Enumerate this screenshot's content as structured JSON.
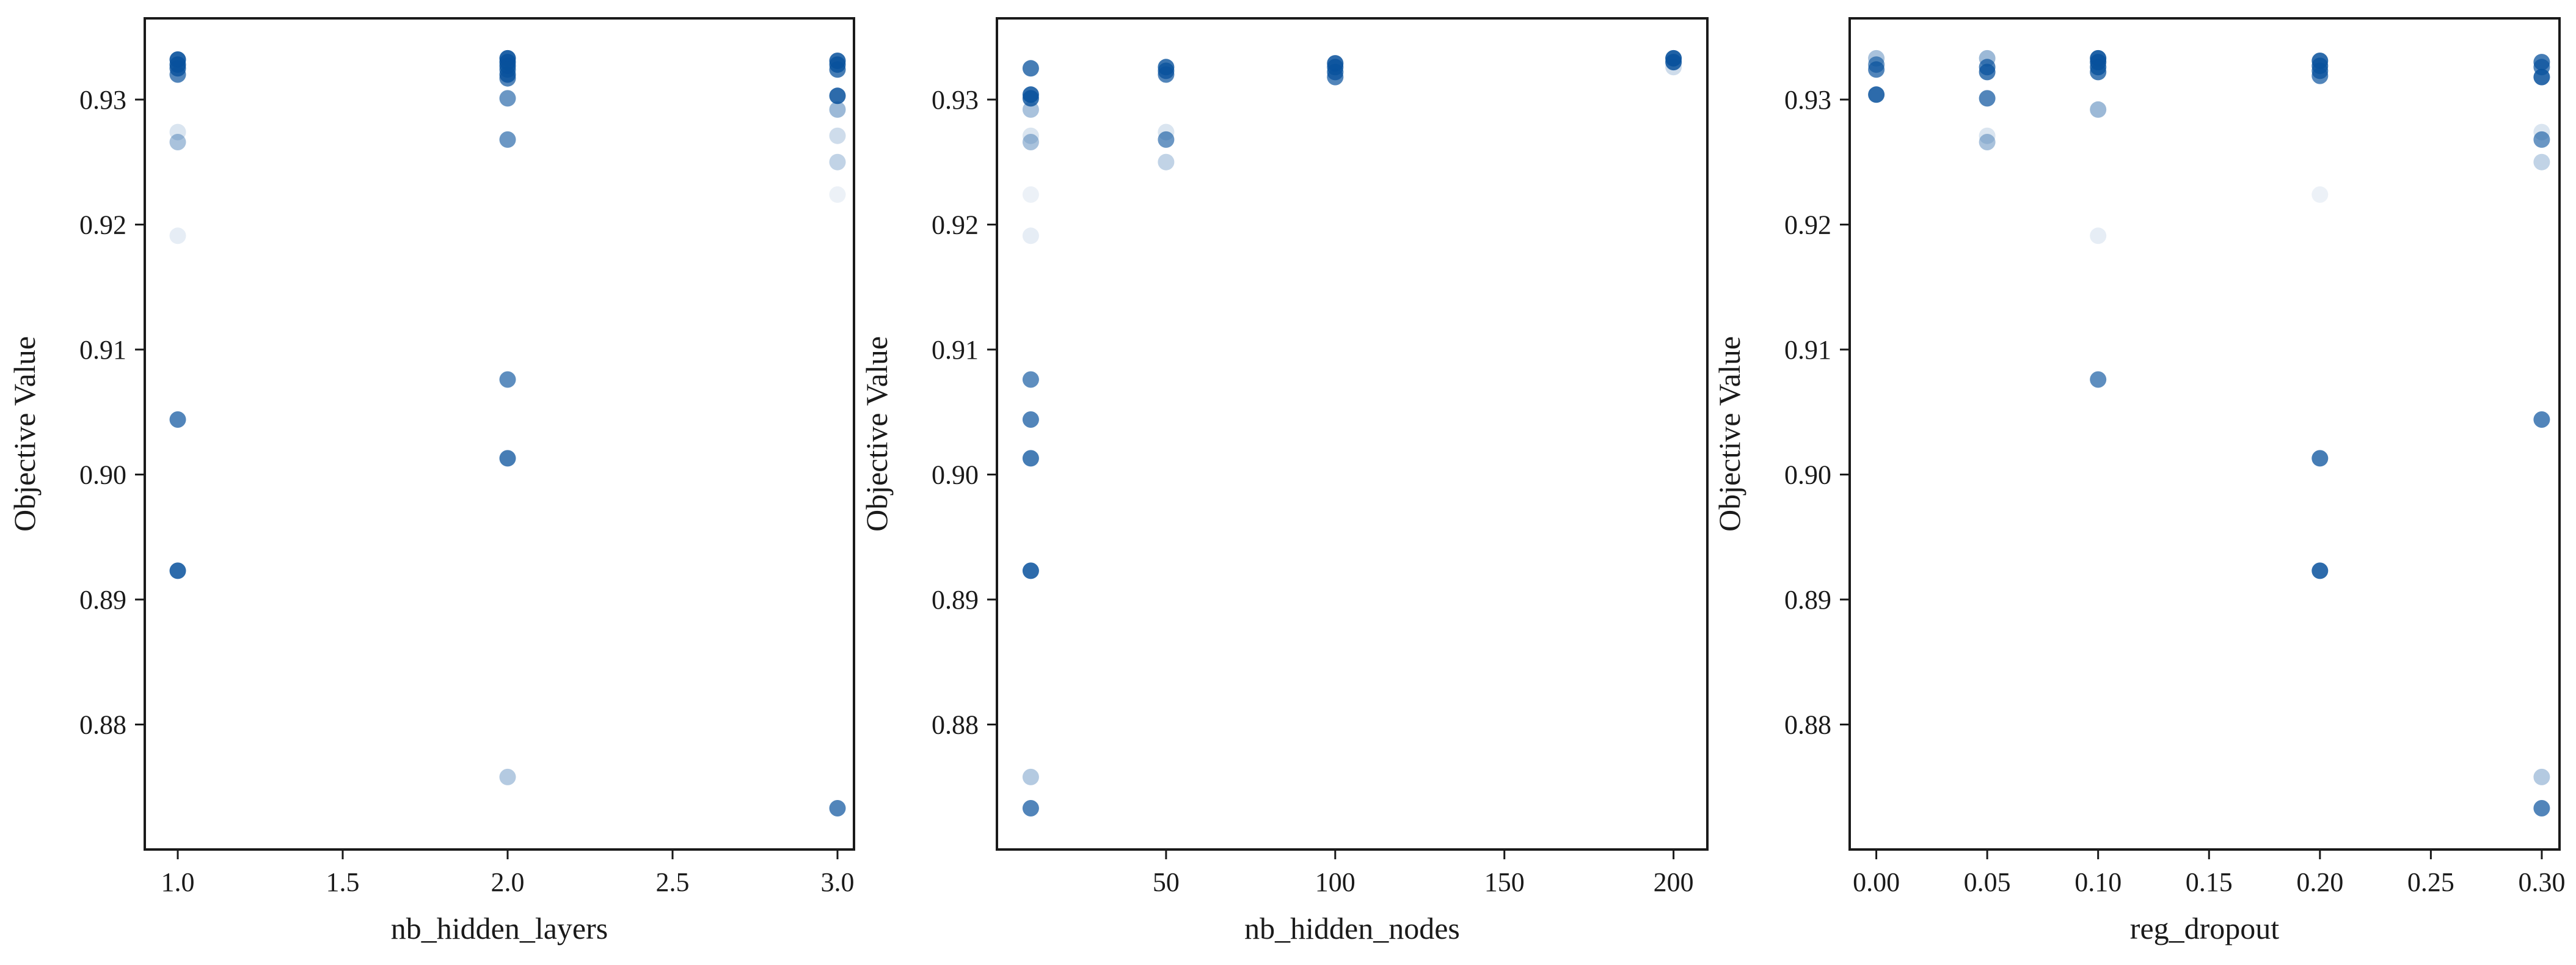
{
  "chart_data": [
    {
      "type": "scatter",
      "xlabel": "nb_hidden_layers",
      "ylabel": "Objective Value",
      "xlim": [
        0.9,
        3.05
      ],
      "ylim": [
        0.87,
        0.9365
      ],
      "xticks": [
        1.0,
        1.5,
        2.0,
        2.5,
        3.0
      ],
      "xtick_labels": [
        "1.0",
        "1.5",
        "2.0",
        "2.5",
        "3.0"
      ],
      "yticks": [
        0.88,
        0.89,
        0.9,
        0.91,
        0.92,
        0.93
      ],
      "ytick_labels": [
        "0.88",
        "0.89",
        "0.90",
        "0.91",
        "0.92",
        "0.93"
      ],
      "grid": false,
      "color": "#08519c",
      "points": [
        {
          "x": 1.0,
          "y": 0.9332,
          "a": 0.9
        },
        {
          "x": 1.0,
          "y": 0.9328,
          "a": 0.85
        },
        {
          "x": 1.0,
          "y": 0.9325,
          "a": 0.8
        },
        {
          "x": 1.0,
          "y": 0.932,
          "a": 0.7
        },
        {
          "x": 1.0,
          "y": 0.9274,
          "a": 0.15
        },
        {
          "x": 1.0,
          "y": 0.9266,
          "a": 0.35
        },
        {
          "x": 1.0,
          "y": 0.9191,
          "a": 0.1
        },
        {
          "x": 1.0,
          "y": 0.9044,
          "a": 0.7
        },
        {
          "x": 1.0,
          "y": 0.8923,
          "a": 0.85
        },
        {
          "x": 2.0,
          "y": 0.9333,
          "a": 0.9
        },
        {
          "x": 2.0,
          "y": 0.933,
          "a": 0.85
        },
        {
          "x": 2.0,
          "y": 0.9327,
          "a": 0.8
        },
        {
          "x": 2.0,
          "y": 0.9324,
          "a": 0.75
        },
        {
          "x": 2.0,
          "y": 0.932,
          "a": 0.8
        },
        {
          "x": 2.0,
          "y": 0.9317,
          "a": 0.7
        },
        {
          "x": 2.0,
          "y": 0.9301,
          "a": 0.6
        },
        {
          "x": 2.0,
          "y": 0.9268,
          "a": 0.6
        },
        {
          "x": 2.0,
          "y": 0.9076,
          "a": 0.65
        },
        {
          "x": 2.0,
          "y": 0.9013,
          "a": 0.75
        },
        {
          "x": 2.0,
          "y": 0.8758,
          "a": 0.3
        },
        {
          "x": 3.0,
          "y": 0.9331,
          "a": 0.85
        },
        {
          "x": 3.0,
          "y": 0.9328,
          "a": 0.8
        },
        {
          "x": 3.0,
          "y": 0.9324,
          "a": 0.75
        },
        {
          "x": 3.0,
          "y": 0.9303,
          "a": 0.85
        },
        {
          "x": 3.0,
          "y": 0.9292,
          "a": 0.4
        },
        {
          "x": 3.0,
          "y": 0.9271,
          "a": 0.2
        },
        {
          "x": 3.0,
          "y": 0.925,
          "a": 0.25
        },
        {
          "x": 3.0,
          "y": 0.9224,
          "a": 0.08
        },
        {
          "x": 3.0,
          "y": 0.8733,
          "a": 0.7
        }
      ]
    },
    {
      "type": "scatter",
      "xlabel": "nb_hidden_nodes",
      "ylabel": "Objective Value",
      "xlim": [
        0,
        210
      ],
      "ylim": [
        0.87,
        0.9365
      ],
      "xticks": [
        50,
        100,
        150,
        200
      ],
      "xtick_labels": [
        "50",
        "100",
        "150",
        "200"
      ],
      "yticks": [
        0.88,
        0.89,
        0.9,
        0.91,
        0.92,
        0.93
      ],
      "ytick_labels": [
        "0.88",
        "0.89",
        "0.90",
        "0.91",
        "0.92",
        "0.93"
      ],
      "grid": false,
      "color": "#08519c",
      "points": [
        {
          "x": 10,
          "y": 0.9325,
          "a": 0.75
        },
        {
          "x": 10,
          "y": 0.9304,
          "a": 0.85
        },
        {
          "x": 10,
          "y": 0.9301,
          "a": 0.8
        },
        {
          "x": 10,
          "y": 0.9292,
          "a": 0.35
        },
        {
          "x": 10,
          "y": 0.9271,
          "a": 0.15
        },
        {
          "x": 10,
          "y": 0.9266,
          "a": 0.35
        },
        {
          "x": 10,
          "y": 0.9224,
          "a": 0.08
        },
        {
          "x": 10,
          "y": 0.9191,
          "a": 0.1
        },
        {
          "x": 10,
          "y": 0.9076,
          "a": 0.65
        },
        {
          "x": 10,
          "y": 0.9044,
          "a": 0.7
        },
        {
          "x": 10,
          "y": 0.9013,
          "a": 0.75
        },
        {
          "x": 10,
          "y": 0.8923,
          "a": 0.85
        },
        {
          "x": 10,
          "y": 0.8758,
          "a": 0.3
        },
        {
          "x": 10,
          "y": 0.8733,
          "a": 0.7
        },
        {
          "x": 50,
          "y": 0.9326,
          "a": 0.8
        },
        {
          "x": 50,
          "y": 0.9323,
          "a": 0.75
        },
        {
          "x": 50,
          "y": 0.932,
          "a": 0.7
        },
        {
          "x": 50,
          "y": 0.9274,
          "a": 0.15
        },
        {
          "x": 50,
          "y": 0.9268,
          "a": 0.6
        },
        {
          "x": 50,
          "y": 0.925,
          "a": 0.25
        },
        {
          "x": 100,
          "y": 0.9329,
          "a": 0.85
        },
        {
          "x": 100,
          "y": 0.9326,
          "a": 0.8
        },
        {
          "x": 100,
          "y": 0.9322,
          "a": 0.75
        },
        {
          "x": 100,
          "y": 0.9318,
          "a": 0.7
        },
        {
          "x": 200,
          "y": 0.9333,
          "a": 0.9
        },
        {
          "x": 200,
          "y": 0.933,
          "a": 0.85
        },
        {
          "x": 200,
          "y": 0.9326,
          "a": 0.2
        }
      ]
    },
    {
      "type": "scatter",
      "xlabel": "reg_dropout",
      "ylabel": "Objective Value",
      "xlim": [
        -0.012,
        0.308
      ],
      "ylim": [
        0.87,
        0.9365
      ],
      "xticks": [
        0.0,
        0.05,
        0.1,
        0.15,
        0.2,
        0.25,
        0.3
      ],
      "xtick_labels": [
        "0.00",
        "0.05",
        "0.10",
        "0.15",
        "0.20",
        "0.25",
        "0.30"
      ],
      "yticks": [
        0.88,
        0.89,
        0.9,
        0.91,
        0.92,
        0.93
      ],
      "ytick_labels": [
        "0.88",
        "0.89",
        "0.90",
        "0.91",
        "0.92",
        "0.93"
      ],
      "grid": false,
      "color": "#08519c",
      "points": [
        {
          "x": 0.0,
          "y": 0.9333,
          "a": 0.35
        },
        {
          "x": 0.0,
          "y": 0.9328,
          "a": 0.6
        },
        {
          "x": 0.0,
          "y": 0.9324,
          "a": 0.7
        },
        {
          "x": 0.0,
          "y": 0.9304,
          "a": 0.85
        },
        {
          "x": 0.05,
          "y": 0.9333,
          "a": 0.4
        },
        {
          "x": 0.05,
          "y": 0.9326,
          "a": 0.7
        },
        {
          "x": 0.05,
          "y": 0.9322,
          "a": 0.75
        },
        {
          "x": 0.05,
          "y": 0.9301,
          "a": 0.7
        },
        {
          "x": 0.05,
          "y": 0.9271,
          "a": 0.15
        },
        {
          "x": 0.05,
          "y": 0.9266,
          "a": 0.35
        },
        {
          "x": 0.1,
          "y": 0.9333,
          "a": 0.9
        },
        {
          "x": 0.1,
          "y": 0.933,
          "a": 0.85
        },
        {
          "x": 0.1,
          "y": 0.9326,
          "a": 0.8
        },
        {
          "x": 0.1,
          "y": 0.9322,
          "a": 0.75
        },
        {
          "x": 0.1,
          "y": 0.9292,
          "a": 0.4
        },
        {
          "x": 0.1,
          "y": 0.9191,
          "a": 0.1
        },
        {
          "x": 0.1,
          "y": 0.9076,
          "a": 0.65
        },
        {
          "x": 0.2,
          "y": 0.9331,
          "a": 0.85
        },
        {
          "x": 0.2,
          "y": 0.9327,
          "a": 0.8
        },
        {
          "x": 0.2,
          "y": 0.9323,
          "a": 0.75
        },
        {
          "x": 0.2,
          "y": 0.9319,
          "a": 0.7
        },
        {
          "x": 0.2,
          "y": 0.9224,
          "a": 0.08
        },
        {
          "x": 0.2,
          "y": 0.9013,
          "a": 0.75
        },
        {
          "x": 0.2,
          "y": 0.8923,
          "a": 0.85
        },
        {
          "x": 0.3,
          "y": 0.933,
          "a": 0.75
        },
        {
          "x": 0.3,
          "y": 0.9326,
          "a": 0.7
        },
        {
          "x": 0.3,
          "y": 0.9318,
          "a": 0.85
        },
        {
          "x": 0.3,
          "y": 0.9274,
          "a": 0.15
        },
        {
          "x": 0.3,
          "y": 0.9268,
          "a": 0.6
        },
        {
          "x": 0.3,
          "y": 0.925,
          "a": 0.25
        },
        {
          "x": 0.3,
          "y": 0.9044,
          "a": 0.7
        },
        {
          "x": 0.3,
          "y": 0.8758,
          "a": 0.3
        },
        {
          "x": 0.3,
          "y": 0.8733,
          "a": 0.7
        }
      ]
    }
  ]
}
